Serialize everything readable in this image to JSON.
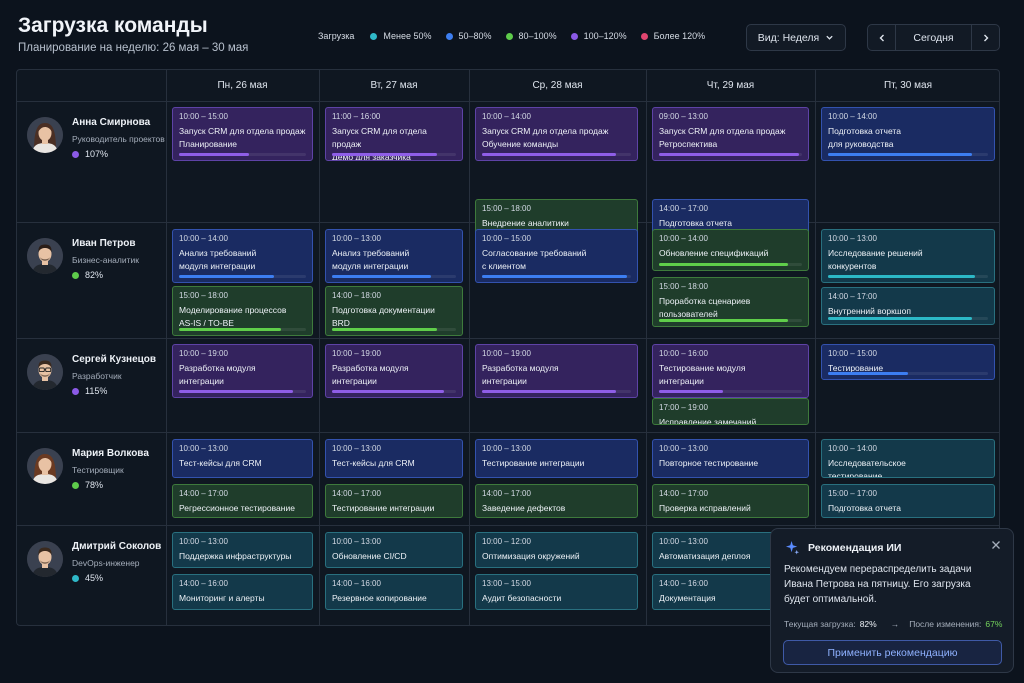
{
  "header": {
    "title": "Загрузка команды",
    "subtitle": "Планирование на неделю: 26 мая – 30 мая"
  },
  "legend": {
    "title": "Загрузка",
    "items": [
      {
        "label": "Менее 50%",
        "color": "#2fb8c8"
      },
      {
        "label": "50–80%",
        "color": "#3d7ef0"
      },
      {
        "label": "80–100%",
        "color": "#5ecb4b"
      },
      {
        "label": "100–120%",
        "color": "#8b5ae6"
      },
      {
        "label": "Более 120%",
        "color": "#e0456f"
      }
    ]
  },
  "controls": {
    "view_label": "Вид: Неделя",
    "today_label": "Сегодня"
  },
  "days": [
    "Пн, 26 мая",
    "Вт, 27 мая",
    "Ср, 28 мая",
    "Чт, 29 мая",
    "Пт, 30 мая"
  ],
  "people": [
    {
      "name": "Анна Смирнова",
      "role": "Руководитель проектов",
      "load": "107%",
      "load_color": "#8b5ae6",
      "gender": "f",
      "hair": "#4a2f24"
    },
    {
      "name": "Иван Петров",
      "role": "Бизнес-аналитик",
      "load": "82%",
      "load_color": "#5ecb4b",
      "gender": "m",
      "hair": "#2b1e18"
    },
    {
      "name": "Сергей Кузнецов",
      "role": "Разработчик",
      "load": "115%",
      "load_color": "#8b5ae6",
      "gender": "m",
      "hair": "#3a2a20",
      "glasses": true
    },
    {
      "name": "Мария Волкова",
      "role": "Тестировщик",
      "load": "78%",
      "load_color": "#5ecb4b",
      "gender": "f",
      "hair": "#6a3a22"
    },
    {
      "name": "Дмитрий Соколов",
      "role": "DevOps-инженер",
      "load": "45%",
      "load_color": "#2fb8c8",
      "gender": "m",
      "hair": "#3b2a1e"
    }
  ],
  "tasks": [
    [
      [
        {
          "time": "10:00 – 15:00",
          "title": "Запуск CRM для отдела продаж\nПланирование",
          "color": "purple",
          "progress": 0.55
        }
      ],
      [
        {
          "time": "11:00 – 16:00",
          "title": "Запуск CRM для отдела продаж\nДемо для заказчика",
          "color": "purple",
          "progress": 0.85
        }
      ],
      [
        {
          "time": "10:00 – 14:00",
          "title": "Запуск CRM для отдела продаж\nОбучение команды",
          "color": "purple",
          "progress": 0.9
        },
        {
          "time": "15:00 – 18:00",
          "title": "Внедрение аналитики\nРевью требований",
          "color": "green",
          "progress": 0.88
        }
      ],
      [
        {
          "time": "09:00 – 13:00",
          "title": "Запуск CRM для отдела продаж\nРетроспектива",
          "color": "purple",
          "progress": 0.98
        },
        {
          "time": "14:00 – 17:00",
          "title": "Подготовка отчета\nдля руководства",
          "color": "blue",
          "progress": 0.8
        }
      ],
      [
        {
          "time": "10:00 – 14:00",
          "title": "Подготовка отчета\nдля руководства",
          "color": "blue",
          "progress": 0.9
        }
      ]
    ],
    [
      [
        {
          "time": "10:00 – 14:00",
          "title": "Анализ требований\nмодуля интеграции",
          "color": "blue",
          "progress": 0.75
        },
        {
          "time": "15:00 – 18:00",
          "title": "Моделирование процессов\nAS-IS / TO-BE",
          "color": "green",
          "progress": 0.8
        }
      ],
      [
        {
          "time": "10:00 – 13:00",
          "title": "Анализ требований\nмодуля интеграции",
          "color": "blue",
          "progress": 0.8
        },
        {
          "time": "14:00 – 18:00",
          "title": "Подготовка документации\nBRD",
          "color": "green",
          "progress": 0.85
        }
      ],
      [
        {
          "time": "10:00 – 15:00",
          "title": "Согласование требований\nс клиентом",
          "color": "blue",
          "progress": 0.97
        }
      ],
      [
        {
          "time": "10:00 – 14:00",
          "title": "Обновление спецификаций",
          "color": "green",
          "progress": 0.9
        },
        {
          "time": "15:00 – 18:00",
          "title": "Проработка сценариев\nпользователей",
          "color": "green",
          "progress": 0.9
        }
      ],
      [
        {
          "time": "10:00 – 13:00",
          "title": "Исследование решений\nконкурентов",
          "color": "teal",
          "progress": 0.92
        },
        {
          "time": "14:00 – 17:00",
          "title": "Внутренний воркшоп",
          "color": "teal",
          "progress": 0.9
        }
      ]
    ],
    [
      [
        {
          "time": "10:00 – 19:00",
          "title": "Разработка модуля\nинтеграции",
          "color": "purple",
          "progress": 0.9
        }
      ],
      [
        {
          "time": "10:00 – 19:00",
          "title": "Разработка модуля\nинтеграции",
          "color": "purple",
          "progress": 0.9
        }
      ],
      [
        {
          "time": "10:00 – 19:00",
          "title": "Разработка модуля\nинтеграции",
          "color": "purple",
          "progress": 0.9
        }
      ],
      [
        {
          "time": "10:00 – 16:00",
          "title": "Тестирование модуля\nинтеграции",
          "color": "purple",
          "progress": 0.45
        },
        {
          "time": "17:00 – 19:00",
          "title": "Исправление замечаний",
          "color": "green",
          "progress": 0
        }
      ],
      [
        {
          "time": "10:00 – 15:00",
          "title": "Тестирование\nи оптимизация",
          "color": "blue",
          "progress": 0.5
        }
      ]
    ],
    [
      [
        {
          "time": "10:00 – 13:00",
          "title": "Тест-кейсы для CRM",
          "color": "blue",
          "progress": 0
        },
        {
          "time": "14:00 – 17:00",
          "title": "Регрессионное тестирование",
          "color": "green",
          "progress": 0
        }
      ],
      [
        {
          "time": "10:00 – 13:00",
          "title": "Тест-кейсы для CRM",
          "color": "blue",
          "progress": 0
        },
        {
          "time": "14:00 – 17:00",
          "title": "Тестирование интеграции",
          "color": "green",
          "progress": 0
        }
      ],
      [
        {
          "time": "10:00 – 13:00",
          "title": "Тестирование интеграции",
          "color": "blue",
          "progress": 0
        },
        {
          "time": "14:00 – 17:00",
          "title": "Заведение дефектов",
          "color": "green",
          "progress": 0
        }
      ],
      [
        {
          "time": "10:00 – 13:00",
          "title": "Повторное тестирование",
          "color": "blue",
          "progress": 0
        },
        {
          "time": "14:00 – 17:00",
          "title": "Проверка исправлений",
          "color": "green",
          "progress": 0
        }
      ],
      [
        {
          "time": "10:00 – 14:00",
          "title": "Исследовательское\nтестирование",
          "color": "teal",
          "progress": 0
        },
        {
          "time": "15:00 – 17:00",
          "title": "Подготовка отчета",
          "color": "teal",
          "progress": 0
        }
      ]
    ],
    [
      [
        {
          "time": "10:00 – 13:00",
          "title": "Поддержка инфраструктуры",
          "color": "teal",
          "progress": 0
        },
        {
          "time": "14:00 – 16:00",
          "title": "Мониторинг и алерты",
          "color": "teal",
          "progress": 0
        }
      ],
      [
        {
          "time": "10:00 – 13:00",
          "title": "Обновление CI/CD",
          "color": "teal",
          "progress": 0
        },
        {
          "time": "14:00 – 16:00",
          "title": "Резервное копирование",
          "color": "teal",
          "progress": 0
        }
      ],
      [
        {
          "time": "10:00 – 12:00",
          "title": "Оптимизация окружений",
          "color": "teal",
          "progress": 0
        },
        {
          "time": "13:00 – 15:00",
          "title": "Аудит безопасности",
          "color": "teal",
          "progress": 0
        }
      ],
      [
        {
          "time": "10:00 – 13:00",
          "title": "Автоматизация деплоя",
          "color": "teal",
          "progress": 0
        },
        {
          "time": "14:00 – 16:00",
          "title": "Документация",
          "color": "teal",
          "progress": 0
        }
      ],
      []
    ]
  ],
  "ai_panel": {
    "title": "Рекомендация ИИ",
    "text": "Рекомендуем перераспределить задачи Ивана Петрова на пятницу. Его загрузка будет оптимальной.",
    "current_label": "Текущая загрузка:",
    "current_value": "82%",
    "after_label": "После изменения:",
    "after_value": "67%",
    "apply_label": "Применить рекомендацию"
  }
}
